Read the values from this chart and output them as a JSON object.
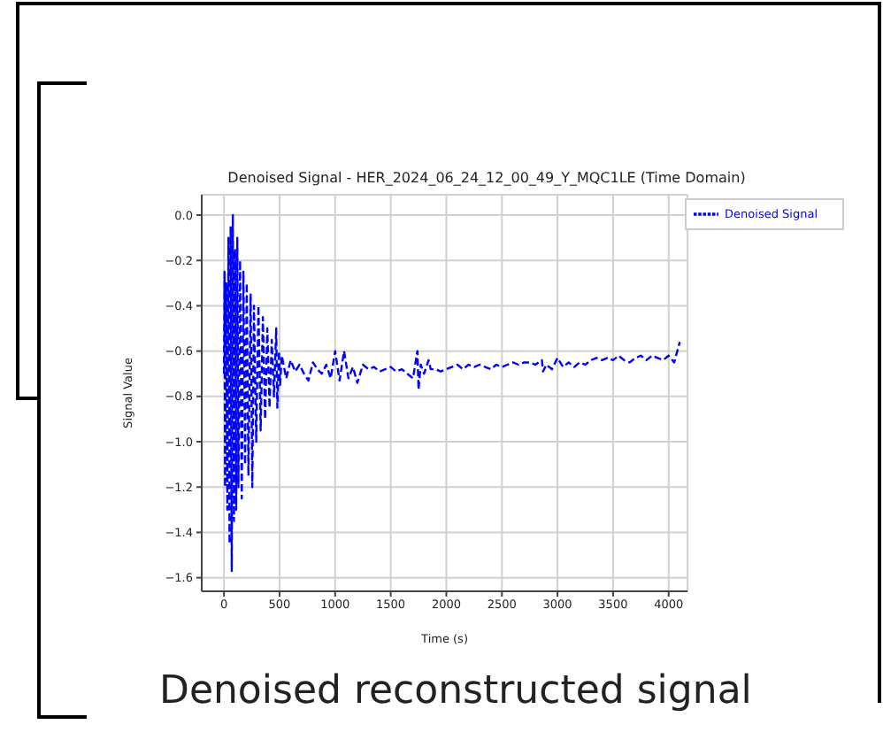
{
  "chart_data": {
    "type": "line",
    "title": "Denoised Signal - HER_2024_06_24_12_00_49_Y_MQC1LE (Time Domain)",
    "xlabel": "Time (s)",
    "ylabel": "Signal Value",
    "annotations": [
      "Denoised reconstructed signal"
    ],
    "x": [
      0,
      5,
      10,
      20,
      30,
      40,
      50,
      60,
      70,
      80,
      90,
      100,
      110,
      120,
      130,
      145,
      160,
      175,
      190,
      205,
      220,
      240,
      255,
      270,
      290,
      310,
      330,
      350,
      370,
      390,
      410,
      430,
      450,
      470,
      480,
      495,
      505,
      520,
      560,
      600,
      640,
      680,
      720,
      760,
      800,
      840,
      880,
      920,
      960,
      1000,
      1040,
      1080,
      1120,
      1160,
      1200,
      1250,
      1300,
      1350,
      1400,
      1450,
      1500,
      1550,
      1600,
      1650,
      1700,
      1740,
      1750,
      1770,
      1800,
      1840,
      1860,
      1900,
      1950,
      2000,
      2050,
      2100,
      2150,
      2200,
      2250,
      2300,
      2350,
      2400,
      2450,
      2500,
      2550,
      2600,
      2650,
      2700,
      2750,
      2800,
      2860,
      2870,
      2900,
      2950,
      3000,
      3050,
      3100,
      3150,
      3200,
      3250,
      3300,
      3350,
      3400,
      3450,
      3500,
      3550,
      3600,
      3650,
      3700,
      3750,
      3800,
      3850,
      3900,
      3950,
      4000,
      4050,
      4100
    ],
    "series": [
      {
        "name": "Denoised Signal",
        "color": "#0000ff",
        "values": [
          -0.7,
          -0.25,
          -1.2,
          -0.3,
          -1.3,
          -0.1,
          -1.45,
          -0.05,
          -1.57,
          0.0,
          -1.35,
          -0.15,
          -1.3,
          -0.1,
          -1.2,
          -0.2,
          -1.25,
          -0.25,
          -1.1,
          -0.3,
          -1.15,
          -0.35,
          -1.2,
          -0.4,
          -1.0,
          -0.4,
          -0.95,
          -0.45,
          -0.9,
          -0.5,
          -0.85,
          -0.55,
          -0.8,
          -0.5,
          -0.85,
          -0.6,
          -0.75,
          -0.62,
          -0.72,
          -0.64,
          -0.69,
          -0.66,
          -0.7,
          -0.73,
          -0.65,
          -0.68,
          -0.7,
          -0.66,
          -0.72,
          -0.6,
          -0.73,
          -0.6,
          -0.72,
          -0.67,
          -0.74,
          -0.66,
          -0.68,
          -0.67,
          -0.69,
          -0.68,
          -0.67,
          -0.69,
          -0.68,
          -0.7,
          -0.72,
          -0.6,
          -0.77,
          -0.66,
          -0.7,
          -0.64,
          -0.68,
          -0.68,
          -0.69,
          -0.68,
          -0.67,
          -0.66,
          -0.68,
          -0.66,
          -0.67,
          -0.66,
          -0.67,
          -0.68,
          -0.66,
          -0.67,
          -0.66,
          -0.65,
          -0.66,
          -0.65,
          -0.65,
          -0.66,
          -0.64,
          -0.69,
          -0.66,
          -0.68,
          -0.63,
          -0.67,
          -0.65,
          -0.67,
          -0.65,
          -0.66,
          -0.64,
          -0.63,
          -0.64,
          -0.63,
          -0.64,
          -0.62,
          -0.64,
          -0.65,
          -0.63,
          -0.62,
          -0.64,
          -0.62,
          -0.63,
          -0.64,
          -0.62,
          -0.65,
          -0.56
        ]
      }
    ],
    "xlim": [
      -200,
      4170
    ],
    "ylim": [
      -1.66,
      0.09
    ],
    "xticks": [
      0,
      500,
      1000,
      1500,
      2000,
      2500,
      3000,
      3500,
      4000
    ],
    "yticks": [
      -1.6,
      -1.4,
      -1.2,
      {
        "value": -1,
        "label": "−1.0"
      },
      -0.8,
      -0.6,
      -0.4,
      -0.2,
      {
        "value": 0,
        "label": "0.0"
      }
    ],
    "grid": true,
    "legend": "top right",
    "line_style": "dashed",
    "marker": "none"
  }
}
